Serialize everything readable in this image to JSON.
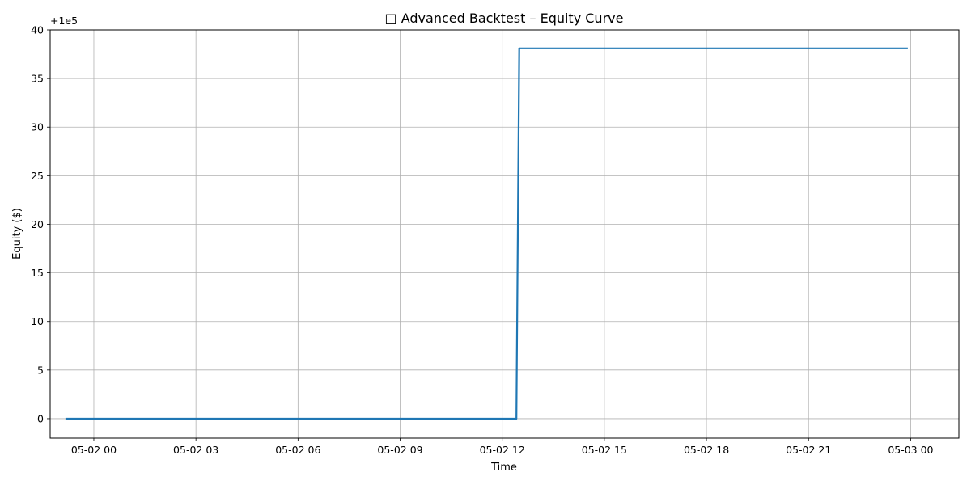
{
  "chart_data": {
    "type": "line",
    "title": "□ Advanced Backtest – Equity Curve",
    "xlabel": "Time",
    "ylabel": "Equity ($)",
    "y_offset_label": "+1e5",
    "grid": true,
    "x_tick_labels": [
      "05-02 00",
      "05-02 03",
      "05-02 06",
      "05-02 09",
      "05-02 12",
      "05-02 15",
      "05-02 18",
      "05-02 21",
      "05-03 00"
    ],
    "y_tick_labels": [
      "0",
      "5",
      "10",
      "15",
      "20",
      "25",
      "30",
      "35",
      "40"
    ],
    "xlim": [
      "05-01 22:43",
      "05-03 01:25"
    ],
    "ylim": [
      -2,
      40
    ],
    "series": [
      {
        "color": "#1f77b4",
        "x": [
          "05-01 23:10",
          "05-02 12:25",
          "05-02 12:30",
          "05-02 23:55"
        ],
        "y": [
          0,
          0,
          38.1,
          38.1
        ]
      }
    ]
  }
}
